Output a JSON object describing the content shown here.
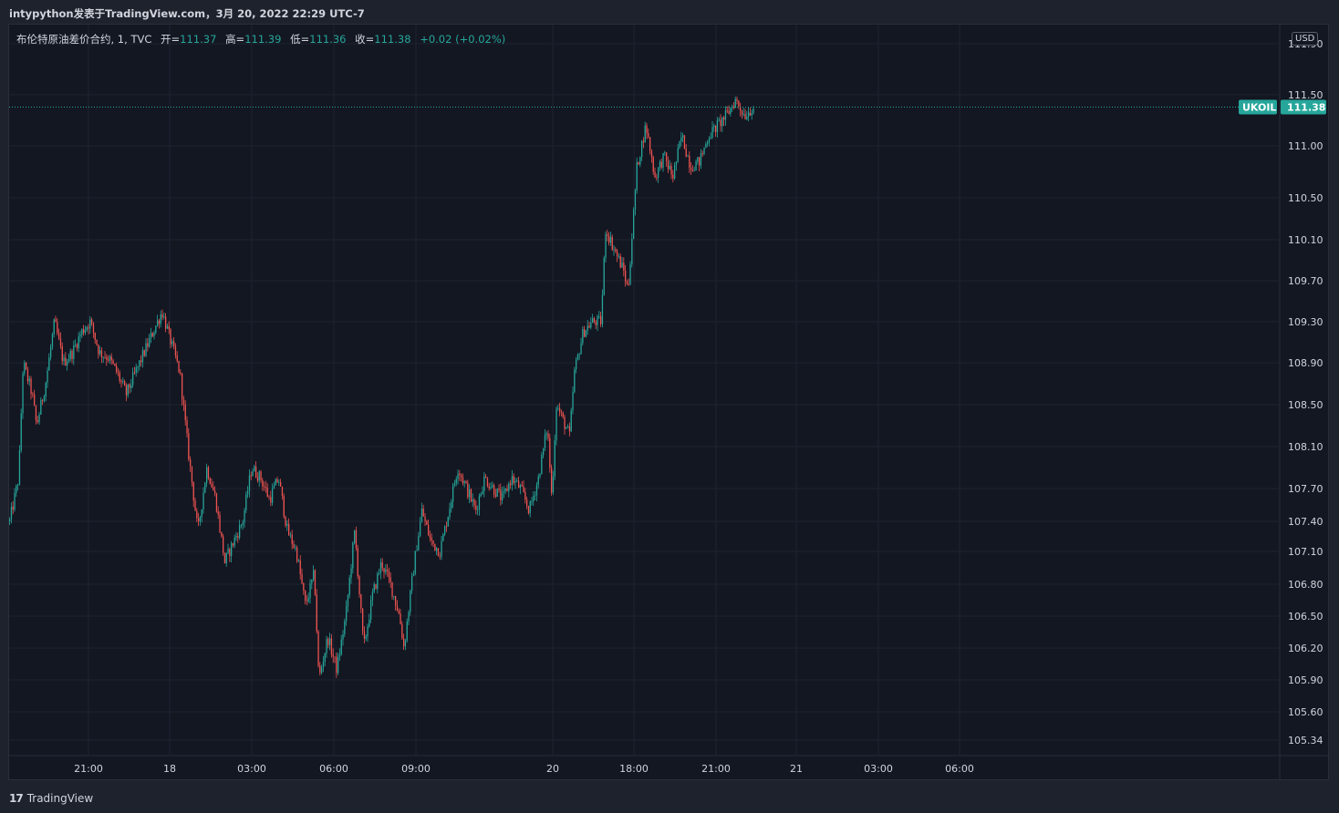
{
  "header": {
    "publisher_text": "intypython发表于TradingView.com，3月 20, 2022 22:29 UTC-7"
  },
  "legend": {
    "symbol_desc": "布伦特原油差价合约, 1, TVC",
    "open_label": "开=",
    "open": "111.37",
    "high_label": "高=",
    "high": "111.39",
    "low_label": "低=",
    "low": "111.36",
    "close_label": "收=",
    "close": "111.38",
    "change": "+0.02 (+0.02%)"
  },
  "currency": "USD",
  "last_price_tag": {
    "symbol": "UKOIL",
    "price": "111.38"
  },
  "footer": {
    "logo_mark": "17",
    "brand": "TradingView"
  },
  "colors": {
    "up": "#26a69a",
    "down": "#ef5350",
    "background": "#131722",
    "grid": "#1f2330",
    "text": "#d1d4dc"
  },
  "chart_data": {
    "type": "candlestick",
    "y_axis_ticks": [
      "111.90",
      "111.50",
      "111.00",
      "110.50",
      "110.10",
      "109.70",
      "109.30",
      "108.90",
      "108.50",
      "108.10",
      "107.70",
      "107.40",
      "107.10",
      "106.80",
      "106.50",
      "106.20",
      "105.90",
      "105.60",
      "105.34"
    ],
    "y_axis_values": [
      111.9,
      111.5,
      111.0,
      110.5,
      110.1,
      109.7,
      109.3,
      108.9,
      108.5,
      108.1,
      107.7,
      107.4,
      107.1,
      106.8,
      106.5,
      106.2,
      105.9,
      105.6,
      105.34
    ],
    "x_axis_ticks": [
      "21:00",
      "18",
      "03:00",
      "06:00",
      "09:00",
      "20",
      "18:00",
      "21:00",
      "21",
      "03:00",
      "06:00"
    ],
    "last_price": 111.38,
    "price_path": [
      [
        0,
        107.4
      ],
      [
        0.01,
        107.8
      ],
      [
        0.015,
        108.9
      ],
      [
        0.025,
        108.6
      ],
      [
        0.03,
        108.3
      ],
      [
        0.04,
        108.7
      ],
      [
        0.05,
        109.3
      ],
      [
        0.06,
        108.9
      ],
      [
        0.07,
        109.0
      ],
      [
        0.08,
        109.2
      ],
      [
        0.09,
        109.3
      ],
      [
        0.1,
        109.0
      ],
      [
        0.11,
        108.95
      ],
      [
        0.12,
        108.8
      ],
      [
        0.13,
        108.6
      ],
      [
        0.14,
        108.8
      ],
      [
        0.15,
        109.0
      ],
      [
        0.16,
        109.2
      ],
      [
        0.17,
        109.4
      ],
      [
        0.18,
        109.1
      ],
      [
        0.19,
        108.8
      ],
      [
        0.2,
        108.0
      ],
      [
        0.21,
        107.3
      ],
      [
        0.22,
        107.9
      ],
      [
        0.23,
        107.6
      ],
      [
        0.24,
        107.0
      ],
      [
        0.25,
        107.2
      ],
      [
        0.26,
        107.4
      ],
      [
        0.27,
        107.9
      ],
      [
        0.28,
        107.8
      ],
      [
        0.29,
        107.6
      ],
      [
        0.3,
        107.8
      ],
      [
        0.31,
        107.3
      ],
      [
        0.32,
        107.1
      ],
      [
        0.33,
        106.6
      ],
      [
        0.34,
        106.9
      ],
      [
        0.345,
        105.9
      ],
      [
        0.355,
        106.3
      ],
      [
        0.365,
        106.0
      ],
      [
        0.375,
        106.5
      ],
      [
        0.385,
        107.3
      ],
      [
        0.395,
        106.2
      ],
      [
        0.405,
        106.7
      ],
      [
        0.415,
        107.0
      ],
      [
        0.425,
        106.8
      ],
      [
        0.435,
        106.5
      ],
      [
        0.44,
        106.2
      ],
      [
        0.45,
        106.9
      ],
      [
        0.46,
        107.5
      ],
      [
        0.47,
        107.2
      ],
      [
        0.48,
        107.1
      ],
      [
        0.49,
        107.5
      ],
      [
        0.5,
        107.9
      ],
      [
        0.51,
        107.7
      ],
      [
        0.52,
        107.5
      ],
      [
        0.53,
        107.8
      ],
      [
        0.54,
        107.7
      ],
      [
        0.55,
        107.6
      ],
      [
        0.56,
        107.8
      ],
      [
        0.57,
        107.7
      ],
      [
        0.58,
        107.5
      ],
      [
        0.59,
        107.8
      ],
      [
        0.6,
        108.3
      ],
      [
        0.605,
        107.6
      ],
      [
        0.61,
        108.5
      ],
      [
        0.62,
        108.3
      ],
      [
        0.625,
        108.2
      ],
      [
        0.63,
        108.8
      ],
      [
        0.64,
        109.2
      ],
      [
        0.65,
        109.3
      ],
      [
        0.66,
        109.3
      ],
      [
        0.665,
        110.2
      ],
      [
        0.675,
        110.0
      ],
      [
        0.685,
        109.8
      ],
      [
        0.69,
        109.6
      ],
      [
        0.7,
        110.8
      ],
      [
        0.71,
        111.2
      ],
      [
        0.72,
        110.7
      ],
      [
        0.73,
        110.9
      ],
      [
        0.74,
        110.7
      ],
      [
        0.75,
        111.1
      ],
      [
        0.76,
        110.8
      ],
      [
        0.77,
        110.85
      ],
      [
        0.78,
        111.1
      ],
      [
        0.79,
        111.2
      ],
      [
        0.8,
        111.3
      ],
      [
        0.81,
        111.45
      ],
      [
        0.82,
        111.3
      ],
      [
        0.83,
        111.38
      ]
    ]
  }
}
